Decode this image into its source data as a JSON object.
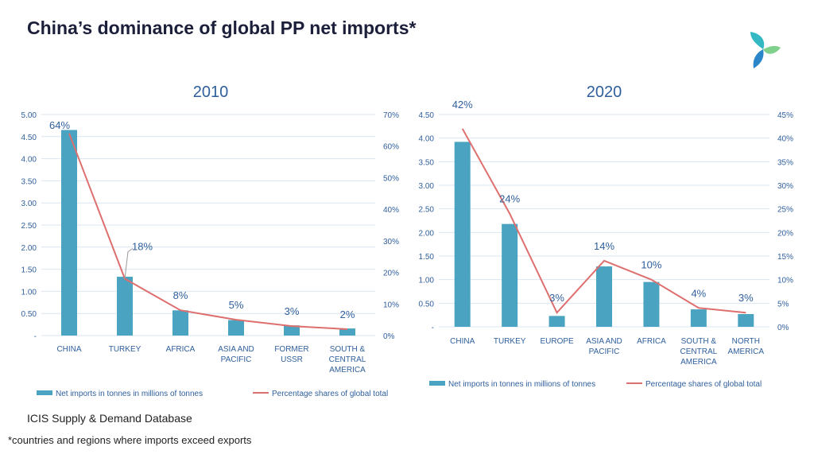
{
  "page": {
    "title": "China’s dominance of global PP net imports*",
    "source": "ICIS Supply & Demand Database",
    "footnote": "*countries and regions where imports exceed exports"
  },
  "colors": {
    "bar": "#4aa3c0",
    "line": "#de6f6f",
    "text_blue": "#2f5f9c",
    "grid": "#d9e6f2",
    "title": "#1c1f3a"
  },
  "chart_data": [
    {
      "type": "bar",
      "title": "2010",
      "categories": [
        [
          "CHINA"
        ],
        [
          "TURKEY"
        ],
        [
          "AFRICA"
        ],
        [
          "ASIA AND",
          "PACIFIC"
        ],
        [
          "FORMER",
          "USSR"
        ],
        [
          "SOUTH &",
          "CENTRAL",
          "AMERICA"
        ]
      ],
      "series": [
        {
          "name": "Net imports in tonnes in millions of tonnes",
          "type": "bar",
          "axis": "left",
          "values": [
            4.65,
            1.33,
            0.57,
            0.35,
            0.23,
            0.16
          ]
        },
        {
          "name": "Percentage shares of global total",
          "type": "line",
          "axis": "right",
          "values": [
            64,
            18,
            8,
            5,
            3,
            2
          ]
        }
      ],
      "data_labels": [
        "64%",
        "18%",
        "8%",
        "5%",
        "3%",
        "2%"
      ],
      "y_left": {
        "min": 0,
        "max": 5,
        "ticks": [
          "-",
          "0.50",
          "1.00",
          "1.50",
          "2.00",
          "2.50",
          "3.00",
          "3.50",
          "4.00",
          "4.50",
          "5.00"
        ]
      },
      "y_right": {
        "min": 0,
        "max": 70,
        "ticks": [
          "0%",
          "10%",
          "20%",
          "30%",
          "40%",
          "50%",
          "60%",
          "70%"
        ]
      },
      "legend": "bottom",
      "grid": true
    },
    {
      "type": "bar",
      "title": "2020",
      "categories": [
        [
          "CHINA"
        ],
        [
          "TURKEY"
        ],
        [
          "EUROPE"
        ],
        [
          "ASIA AND",
          "PACIFIC"
        ],
        [
          "AFRICA"
        ],
        [
          "SOUTH &",
          "CENTRAL",
          "AMERICA"
        ],
        [
          "NORTH",
          "AMERICA"
        ]
      ],
      "series": [
        {
          "name": "Net imports in tonnes in millions of tonnes",
          "type": "bar",
          "axis": "left",
          "values": [
            3.92,
            2.18,
            0.23,
            1.28,
            0.95,
            0.37,
            0.27
          ]
        },
        {
          "name": "Percentage shares of global total",
          "type": "line",
          "axis": "right",
          "values": [
            42,
            24,
            3,
            14,
            10,
            4,
            3
          ]
        }
      ],
      "data_labels": [
        "42%",
        "24%",
        "3%",
        "14%",
        "10%",
        "4%",
        "3%"
      ],
      "y_left": {
        "min": 0,
        "max": 4.5,
        "ticks": [
          "-",
          "0.50",
          "1.00",
          "1.50",
          "2.00",
          "2.50",
          "3.00",
          "3.50",
          "4.00",
          "4.50"
        ]
      },
      "y_right": {
        "min": 0,
        "max": 45,
        "ticks": [
          "0%",
          "5%",
          "10%",
          "15%",
          "20%",
          "25%",
          "30%",
          "35%",
          "40%",
          "45%"
        ]
      },
      "legend": "bottom",
      "grid": true
    }
  ]
}
